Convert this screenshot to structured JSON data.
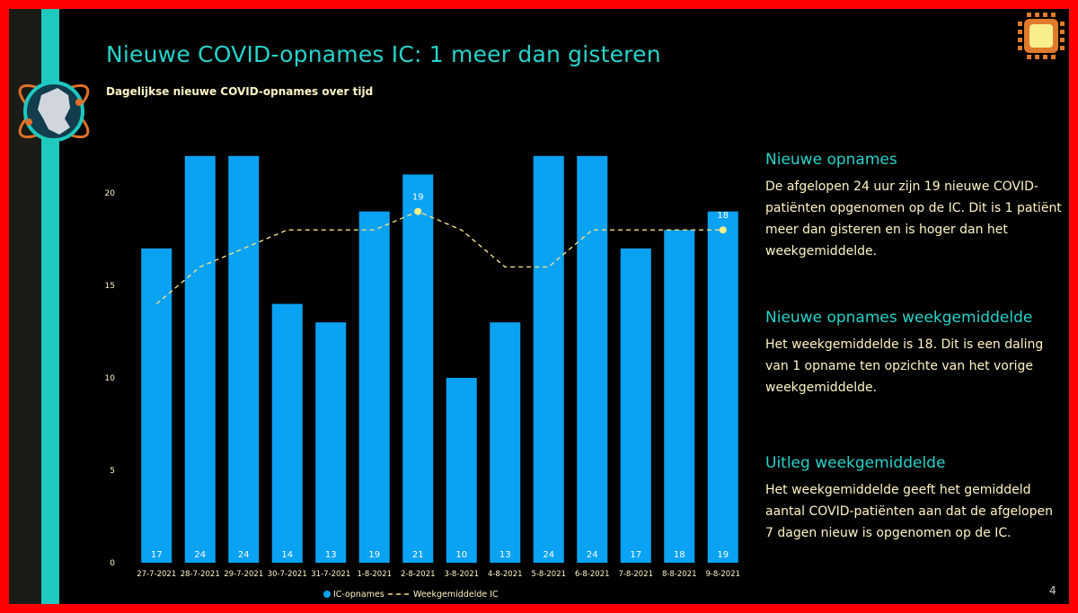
{
  "slide": {
    "title": "Nieuwe COVID-opnames IC: 1 meer dan gisteren",
    "page_number": "4"
  },
  "panels": [
    {
      "heading": "Nieuwe opnames",
      "text": "De afgelopen 24 uur zijn 19 nieuwe COVID-patiënten opgenomen op de IC. Dit is 1 patiënt meer dan gisteren en is hoger dan het weekgemiddelde."
    },
    {
      "heading": "Nieuwe opnames weekgemiddelde",
      "text": "Het weekgemiddelde is 18. Dit is een daling van 1 opname ten opzichte van het vorige weekgemiddelde."
    },
    {
      "heading": "Uitleg weekgemiddelde",
      "text": "Het weekgemiddelde geeft het gemiddeld aantal COVID-patiënten aan dat de afgelopen 7 dagen nieuw is opgenomen op de IC."
    }
  ],
  "chart_data": {
    "type": "bar",
    "title": "Dagelijkse nieuwe COVID-opnames over tijd",
    "categories": [
      "27-7-2021",
      "28-7-2021",
      "29-7-2021",
      "30-7-2021",
      "31-7-2021",
      "1-8-2021",
      "2-8-2021",
      "3-8-2021",
      "4-8-2021",
      "5-8-2021",
      "6-8-2021",
      "7-8-2021",
      "8-8-2021",
      "9-8-2021"
    ],
    "series": [
      {
        "name": "IC-opnames",
        "type": "bar",
        "color": "#0aa2f2",
        "values": [
          17,
          24,
          24,
          14,
          13,
          19,
          21,
          10,
          13,
          24,
          24,
          17,
          18,
          19
        ]
      },
      {
        "name": "Weekgemiddelde IC",
        "type": "line",
        "style": "dashed",
        "color": "#f3e08d",
        "values": [
          14,
          16,
          17,
          18,
          18,
          18,
          19,
          18,
          16,
          16,
          18,
          18,
          18,
          18
        ],
        "highlighted_points": [
          {
            "category": "2-8-2021",
            "label": "19"
          },
          {
            "category": "9-8-2021",
            "label": "18"
          }
        ]
      }
    ],
    "yticks": [
      "0",
      "5",
      "10",
      "15",
      "20"
    ],
    "ylim": [
      0,
      22
    ],
    "grid": false,
    "legend_position": "bottom",
    "legend": [
      {
        "label": "IC-opnames",
        "marker": "dot"
      },
      {
        "label": "Weekgemiddelde IC",
        "marker": "dashed-line"
      }
    ],
    "bar_labels": "inside-bottom",
    "colors": {
      "background": "#000000",
      "bar": "#0aa2f2",
      "line": "#f3e08d",
      "axis_text": "#fff6c6"
    }
  }
}
